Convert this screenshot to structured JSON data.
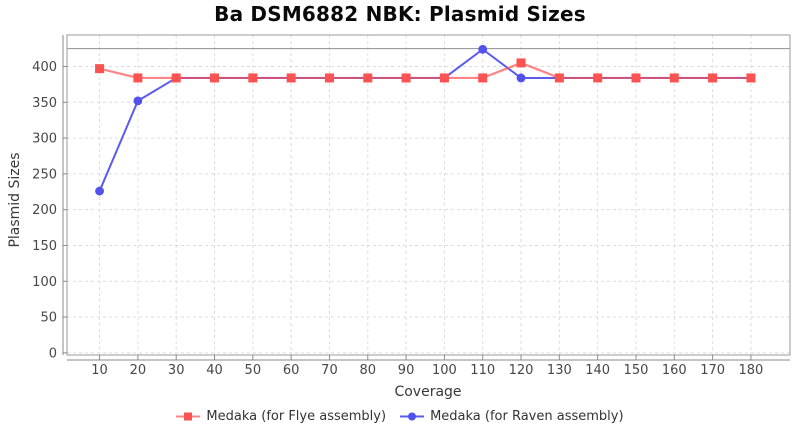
{
  "chart_data": {
    "type": "line",
    "title": "Ba DSM6882 NBK: Plasmid Sizes",
    "xlabel": "Coverage",
    "ylabel": "Plasmid Sizes",
    "x": [
      10,
      20,
      30,
      40,
      50,
      60,
      70,
      80,
      90,
      100,
      110,
      120,
      130,
      140,
      150,
      160,
      170,
      180
    ],
    "series": [
      {
        "name": "Medaka (for Flye assembly)",
        "marker": "square",
        "marker_color": "#fb5252",
        "line_color": "rgba(252,81,81,0.7)",
        "line_width": 2.2,
        "values": [
          397,
          384,
          384,
          384,
          384,
          384,
          384,
          384,
          384,
          384,
          384,
          405,
          384,
          384,
          384,
          384,
          384,
          384
        ]
      },
      {
        "name": "Medaka (for Raven assembly)",
        "marker": "circle",
        "marker_color": "#5151ec",
        "line_color": "#5b5bef",
        "line_width": 2,
        "values": [
          226,
          352,
          384,
          384,
          384,
          384,
          384,
          384,
          384,
          384,
          424,
          384,
          384,
          384,
          384,
          384,
          384,
          384
        ]
      }
    ],
    "reference_line": {
      "value": 425,
      "color": "#8f8f8f"
    },
    "x_ticks": [
      10,
      20,
      30,
      40,
      50,
      60,
      70,
      80,
      90,
      100,
      110,
      120,
      130,
      140,
      150,
      160,
      170,
      180
    ],
    "y_ticks": [
      0,
      50,
      100,
      150,
      200,
      250,
      300,
      350,
      400
    ],
    "xlim": [
      1.5,
      190.2
    ],
    "ylim": [
      -3,
      444
    ],
    "grid": true,
    "legend_position": "bottom"
  },
  "theme": {
    "background": "#ffffff",
    "grid_color": "#dcdcdc",
    "border_color": "#9b9b9b",
    "axis_color": "#8a8a8a",
    "tick_label_color": "#474747",
    "axis_label_color": "#383838",
    "title_color": "#0a0a0a"
  }
}
